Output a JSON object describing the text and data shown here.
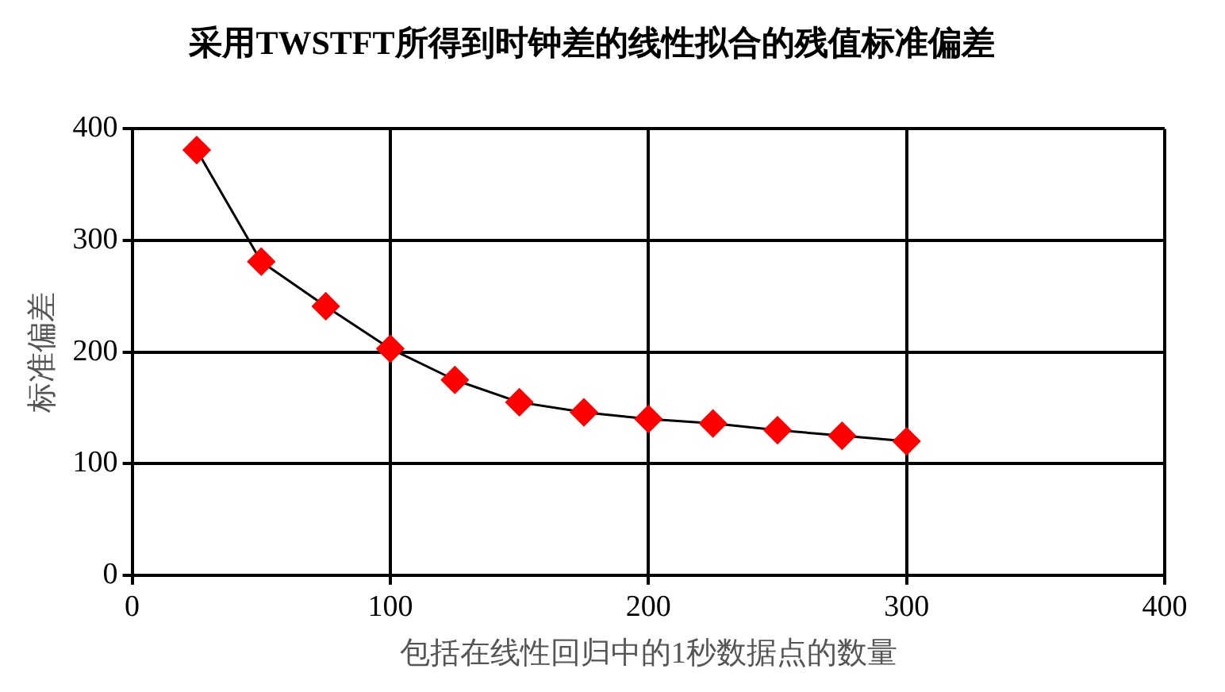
{
  "chart_data": {
    "type": "line",
    "title": "采用TWSTFT所得到时钟差的线性拟合的残值标准偏差",
    "xlabel": "包括在线性回归中的1秒数据点的数量",
    "ylabel": "标准偏差",
    "x": [
      25,
      50,
      75,
      100,
      125,
      150,
      175,
      200,
      225,
      250,
      275,
      300
    ],
    "series": [
      {
        "color": "#ff0000",
        "values": [
          381,
          281,
          241,
          203,
          175,
          155,
          146,
          140,
          136,
          130,
          125,
          120
        ]
      }
    ],
    "xlim": [
      0,
      400
    ],
    "xticks": [
      0,
      100,
      200,
      300,
      400
    ],
    "ylim": [
      0,
      400
    ],
    "yticks": [
      0,
      100,
      200,
      300,
      400
    ],
    "grid": true,
    "legend": false,
    "marker": "diamond",
    "line_style": "solid"
  }
}
